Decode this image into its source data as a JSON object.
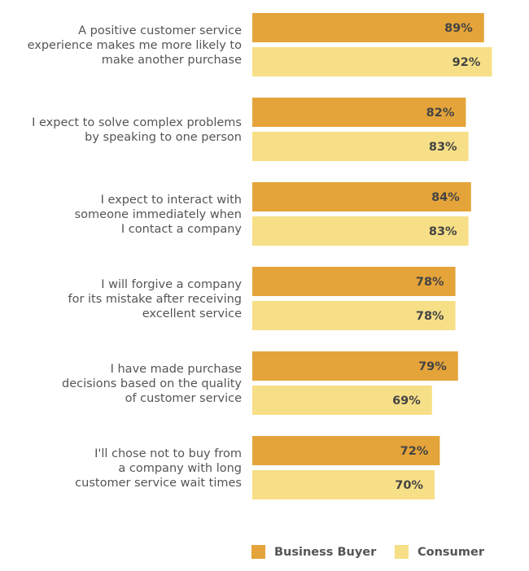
{
  "chart_data": {
    "type": "bar",
    "orientation": "horizontal",
    "categories": [
      [
        "A positive customer service",
        "experience makes me more likely to",
        "make another purchase"
      ],
      [
        "I expect to solve complex problems",
        "by speaking to one person"
      ],
      [
        "I expect to interact with",
        "someone immediately when",
        "I contact a company"
      ],
      [
        "I will forgive a company",
        "for its mistake after receiving",
        "excellent service"
      ],
      [
        "I have made purchase",
        "decisions based on the quality",
        "of customer service"
      ],
      [
        "I'll chose not to buy from",
        "a company with long",
        "customer service wait times"
      ]
    ],
    "series": [
      {
        "name": "Business Buyer",
        "color": "#E5A43A",
        "values": [
          89,
          82,
          84,
          78,
          79,
          72
        ],
        "labels": [
          "89%",
          "82%",
          "84%",
          "78%",
          "79%",
          "72%"
        ]
      },
      {
        "name": "Consumer",
        "color": "#F6DF86",
        "values": [
          92,
          83,
          83,
          78,
          69,
          70
        ],
        "labels": [
          "92%",
          "83%",
          "83%",
          "78%",
          "69%",
          "70%"
        ]
      }
    ],
    "xlim": [
      0,
      100
    ],
    "grid": false,
    "legend": "bottom-center"
  }
}
